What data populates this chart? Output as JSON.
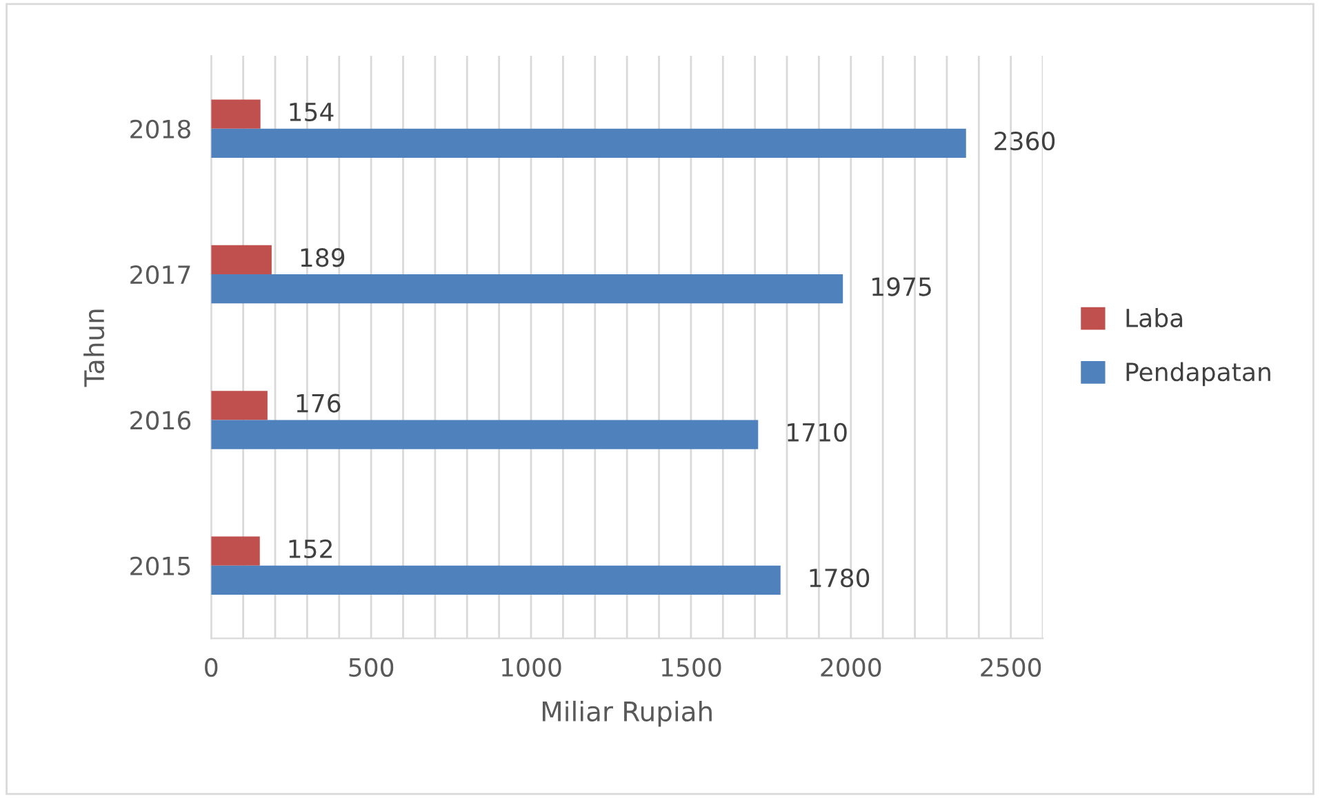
{
  "chart_data": {
    "type": "bar",
    "orientation": "horizontal",
    "xlabel": "Miliar Rupiah",
    "ylabel": "Tahun",
    "categories": [
      "2018",
      "2017",
      "2016",
      "2015"
    ],
    "series": [
      {
        "name": "Laba",
        "color": "#c0504d",
        "values": [
          154,
          189,
          176,
          152
        ]
      },
      {
        "name": "Pendapatan",
        "color": "#4f81bd",
        "values": [
          2360,
          1975,
          1710,
          1780
        ]
      }
    ],
    "xlim": [
      0,
      2600
    ],
    "xticks": [
      0,
      {
        "value": 100,
        "label": null
      },
      {
        "value": 200,
        "label": null
      },
      {
        "value": 300,
        "label": null
      },
      {
        "value": 400,
        "label": null
      },
      500,
      {
        "value": 600,
        "label": null
      },
      {
        "value": 700,
        "label": null
      },
      {
        "value": 800,
        "label": null
      },
      {
        "value": 900,
        "label": null
      },
      1000,
      {
        "value": 1100,
        "label": null
      },
      {
        "value": 1200,
        "label": null
      },
      {
        "value": 1300,
        "label": null
      },
      {
        "value": 1400,
        "label": null
      },
      1500,
      {
        "value": 1600,
        "label": null
      },
      {
        "value": 1700,
        "label": null
      },
      {
        "value": 1800,
        "label": null
      },
      {
        "value": 1900,
        "label": null
      },
      2000,
      {
        "value": 2100,
        "label": null
      },
      {
        "value": 2200,
        "label": null
      },
      {
        "value": 2300,
        "label": null
      },
      {
        "value": 2400,
        "label": null
      },
      2500,
      {
        "value": 2600,
        "label": null
      }
    ],
    "grid": "x",
    "legend": "right",
    "data_labels": true
  }
}
